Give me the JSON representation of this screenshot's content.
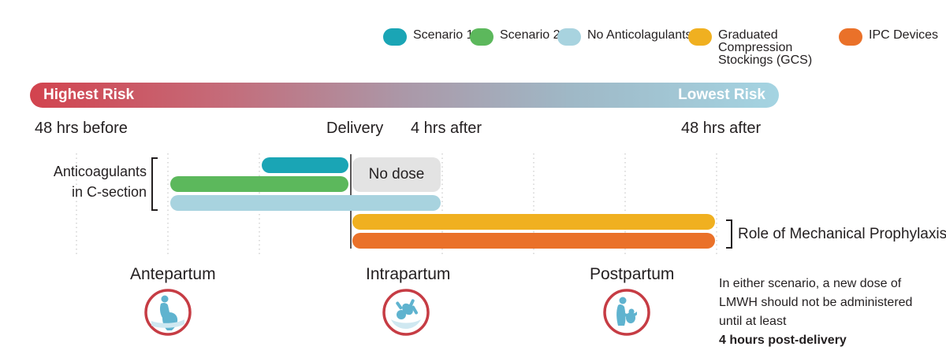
{
  "legend": [
    {
      "label": "Scenario 1",
      "color": "#1aa5b5"
    },
    {
      "label": "Scenario 2",
      "color": "#5cb85c"
    },
    {
      "label": "No Anticolagulants",
      "color": "#a8d3df"
    },
    {
      "label": "Graduated Compression Stockings (GCS)",
      "color": "#f0b020"
    },
    {
      "label": "IPC Devices",
      "color": "#ea7129"
    }
  ],
  "risk_bar": {
    "left_label": "Highest Risk",
    "right_label": "Lowest Risk",
    "gradient_start": "#d2434e",
    "gradient_end": "#a4d4e2"
  },
  "timeline": {
    "labels": [
      "48 hrs before",
      "Delivery",
      "4 hrs after",
      "48 hrs after"
    ]
  },
  "anticoagulants_label": [
    "Anticoagulants",
    "in C-section"
  ],
  "no_dose_label": "No dose",
  "mechanical_label": "Role of Mechanical Prophylaxis",
  "phases": [
    {
      "label": "Antepartum",
      "icon": "pregnant-woman-icon"
    },
    {
      "label": "Intrapartum",
      "icon": "baby-icon"
    },
    {
      "label": "Postpartum",
      "icon": "mother-holding-baby-icon"
    }
  ],
  "note": {
    "text": "In either scenario, a new dose of LMWH should not be administered until at least",
    "bold": "4 hours post-delivery"
  },
  "icon_ring_color": "#c63c44",
  "icon_fill_color": "#5fb3cf"
}
